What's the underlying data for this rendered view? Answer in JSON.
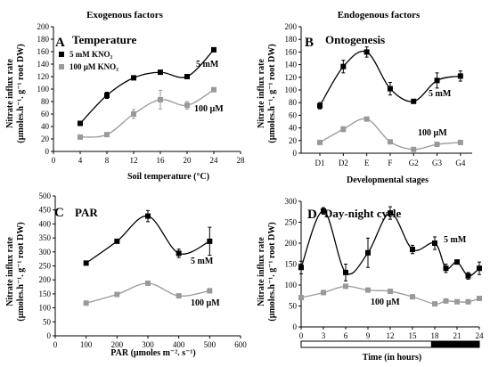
{
  "headers": {
    "left": "Exogenous factors",
    "right": "Endogenous factors"
  },
  "chart_data": [
    {
      "id": "A",
      "type": "line",
      "letter": "A",
      "title": "Temperature",
      "xlabel": "Soil temperature (°C)",
      "ylabel": [
        "Nitrate influx rate",
        "(µmoles.h⁻¹. g⁻¹ root DW)"
      ],
      "xlim": [
        0,
        28
      ],
      "ylim": [
        0,
        200
      ],
      "xticks": [
        0,
        4,
        8,
        12,
        16,
        20,
        24,
        28
      ],
      "yticks": [
        0,
        20,
        40,
        60,
        80,
        100,
        120,
        140,
        160,
        180,
        200
      ],
      "legend": [
        "5 mM KNO₃",
        "100 µM KNO₃"
      ],
      "series": [
        {
          "name": "5 mM",
          "color": "#000000",
          "x": [
            4,
            8,
            12,
            16,
            20,
            24
          ],
          "y": [
            45,
            90,
            118,
            127,
            120,
            163
          ],
          "err": [
            2,
            5,
            3,
            3,
            3,
            3
          ]
        },
        {
          "name": "100 µM",
          "color": "#999999",
          "x": [
            4,
            8,
            12,
            16,
            20,
            24
          ],
          "y": [
            23,
            27,
            60,
            83,
            74,
            99
          ],
          "err": [
            3,
            2,
            7,
            15,
            6,
            3
          ]
        }
      ]
    },
    {
      "id": "B",
      "type": "line",
      "letter": "B",
      "title": "Ontogenesis",
      "xlabel": "Developmental stages",
      "ylabel": [
        "Nitrate influx rate",
        "(µmoles.h⁻¹. g⁻¹ root DW)"
      ],
      "ylim": [
        0,
        200
      ],
      "categories": [
        "D1",
        "D2",
        "E",
        "F",
        "G2",
        "G3",
        "G4"
      ],
      "yticks": [
        0,
        20,
        40,
        60,
        80,
        100,
        120,
        140,
        160,
        180,
        200
      ],
      "series": [
        {
          "name": "5 mM",
          "color": "#000000",
          "y": [
            75,
            137,
            160,
            102,
            82,
            115,
            122
          ],
          "err": [
            5,
            10,
            8,
            10,
            3,
            12,
            8
          ]
        },
        {
          "name": "100 µM",
          "color": "#999999",
          "y": [
            17,
            38,
            54,
            18,
            6,
            14,
            17
          ],
          "err": [
            2,
            4,
            3,
            3,
            2,
            2,
            2
          ]
        }
      ]
    },
    {
      "id": "C",
      "type": "line",
      "letter": "C",
      "title": "PAR",
      "xlabel": "PAR (µmoles m⁻². s⁻¹)",
      "ylabel": [
        "Nitrate influx rate",
        "(µmoles.h⁻¹. g⁻¹ root DW)"
      ],
      "xlim": [
        0,
        600
      ],
      "ylim": [
        0,
        500
      ],
      "xticks": [
        0,
        100,
        200,
        300,
        400,
        500,
        600
      ],
      "yticks": [
        0,
        50,
        100,
        150,
        200,
        250,
        300,
        350,
        400,
        450,
        500
      ],
      "series": [
        {
          "name": "5 mM",
          "color": "#000000",
          "x": [
            100,
            200,
            300,
            400,
            500
          ],
          "y": [
            260,
            338,
            428,
            295,
            338
          ],
          "err": [
            4,
            5,
            20,
            15,
            50
          ]
        },
        {
          "name": "100 µM",
          "color": "#999999",
          "x": [
            100,
            200,
            300,
            400,
            500
          ],
          "y": [
            117,
            148,
            188,
            143,
            161
          ],
          "err": [
            4,
            6,
            6,
            4,
            8
          ]
        }
      ]
    },
    {
      "id": "D",
      "type": "line",
      "letter": "D",
      "title": "Day-night cycle",
      "xlabel": "Time (in hours)",
      "ylabel": [
        "Nitrate influx rate",
        "(µmoles.h⁻¹. g⁻¹ root DW)"
      ],
      "xlim": [
        0,
        24
      ],
      "ylim": [
        0,
        300
      ],
      "xticks": [
        0,
        3,
        6,
        9,
        12,
        15,
        18,
        21,
        24
      ],
      "yticks": [
        0,
        50,
        100,
        150,
        200,
        250,
        300
      ],
      "night_start": 17.5,
      "series": [
        {
          "name": "5 mM",
          "color": "#000000",
          "x": [
            0,
            3,
            6,
            9,
            12,
            15,
            18,
            19.5,
            21,
            22.5,
            24
          ],
          "y": [
            142,
            277,
            130,
            177,
            272,
            185,
            200,
            140,
            155,
            122,
            140
          ],
          "err": [
            15,
            8,
            20,
            35,
            15,
            10,
            15,
            10,
            5,
            8,
            15
          ]
        },
        {
          "name": "100 µM",
          "color": "#999999",
          "x": [
            0,
            3,
            6,
            9,
            12,
            15,
            18,
            19.5,
            21,
            22.5,
            24
          ],
          "y": [
            70,
            82,
            97,
            88,
            85,
            72,
            55,
            62,
            60,
            60,
            68
          ],
          "err": [
            3,
            3,
            4,
            3,
            3,
            3,
            4,
            4,
            3,
            3,
            4
          ]
        }
      ]
    }
  ]
}
